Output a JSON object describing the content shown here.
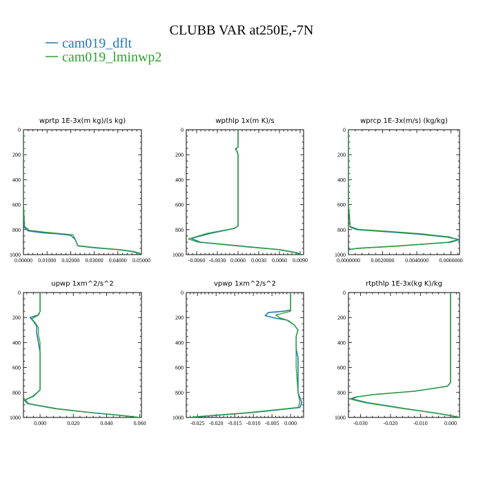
{
  "figure": {
    "title": "CLUBB VAR at250E,-7N",
    "legend": [
      {
        "name": "cam019_dflt",
        "color": "#1f77b4"
      },
      {
        "name": "cam019_lminwp2",
        "color": "#2ca02c"
      }
    ]
  },
  "chart_data": [
    {
      "type": "line",
      "title": "wprtp  1E-3x(m kg)/(s kg)",
      "xlim": [
        0,
        0.05
      ],
      "ylim": [
        1000,
        0
      ],
      "xticks": [
        "0.00000",
        "0.01000",
        "0.02000",
        "0.03000",
        "0.04000",
        "0.05000"
      ],
      "yticks": [
        "0",
        "200",
        "400",
        "600",
        "800",
        "1000"
      ],
      "series": [
        {
          "name": "cam019_dflt",
          "points": [
            [
              0,
              0
            ],
            [
              0,
              300
            ],
            [
              0,
              600
            ],
            [
              0.0003,
              780
            ],
            [
              0.002,
              810
            ],
            [
              0.008,
              825
            ],
            [
              0.015,
              835
            ],
            [
              0.02,
              845
            ],
            [
              0.022,
              880
            ],
            [
              0.023,
              930
            ],
            [
              0.03,
              945
            ],
            [
              0.04,
              960
            ],
            [
              0.046,
              975
            ],
            [
              0.049,
              990
            ],
            [
              0.05,
              1000
            ]
          ]
        },
        {
          "name": "cam019_lminwp2",
          "points": [
            [
              0,
              0
            ],
            [
              0,
              300
            ],
            [
              0,
              600
            ],
            [
              0.0005,
              775
            ],
            [
              0.0025,
              805
            ],
            [
              0.009,
              820
            ],
            [
              0.016,
              832
            ],
            [
              0.021,
              842
            ],
            [
              0.022,
              880
            ],
            [
              0.023,
              928
            ],
            [
              0.031,
              944
            ],
            [
              0.041,
              960
            ],
            [
              0.047,
              976
            ],
            [
              0.0495,
              990
            ],
            [
              0.05,
              1000
            ]
          ]
        }
      ]
    },
    {
      "type": "line",
      "title": "wpthlp  1x(m K)/s",
      "xlim": [
        -0.0075,
        0.0095
      ],
      "ylim": [
        1000,
        0
      ],
      "xticks": [
        "-0.0060",
        "-0.0030",
        "0.0000",
        "0.0030",
        "0.0060",
        "0.0090"
      ],
      "yticks": [
        "0",
        "200",
        "400",
        "600",
        "800",
        "1000"
      ],
      "series": [
        {
          "name": "cam019_dflt",
          "points": [
            [
              0,
              0
            ],
            [
              0,
              140
            ],
            [
              -0.0003,
              150
            ],
            [
              -0.0002,
              170
            ],
            [
              0,
              200
            ],
            [
              0,
              400
            ],
            [
              0,
              600
            ],
            [
              0,
              770
            ],
            [
              -0.0005,
              790
            ],
            [
              -0.004,
              830
            ],
            [
              -0.0068,
              870
            ],
            [
              -0.0055,
              900
            ],
            [
              0.002,
              940
            ],
            [
              0.006,
              960
            ],
            [
              0.0085,
              985
            ],
            [
              0.0092,
              1000
            ]
          ]
        },
        {
          "name": "cam019_lminwp2",
          "points": [
            [
              0,
              0
            ],
            [
              0,
              140
            ],
            [
              -0.0004,
              155
            ],
            [
              -0.0001,
              175
            ],
            [
              0,
              200
            ],
            [
              0,
              400
            ],
            [
              0,
              600
            ],
            [
              0,
              770
            ],
            [
              -0.0006,
              790
            ],
            [
              -0.0045,
              830
            ],
            [
              -0.0072,
              875
            ],
            [
              -0.0058,
              900
            ],
            [
              0.0015,
              940
            ],
            [
              0.0058,
              960
            ],
            [
              0.0083,
              985
            ],
            [
              0.0091,
              1000
            ]
          ]
        }
      ]
    },
    {
      "type": "line",
      "title": "wprcp  1E-3x(m/s) (kg/kg)",
      "xlim": [
        0,
        0.0065
      ],
      "ylim": [
        1000,
        0
      ],
      "xticks": [
        "0.0000000",
        "0.0020000",
        "0.0040000",
        "0.0060000"
      ],
      "yticks": [
        "0",
        "200",
        "400",
        "600",
        "800",
        "1000"
      ],
      "series": [
        {
          "name": "cam019_dflt",
          "points": [
            [
              0,
              0
            ],
            [
              0,
              400
            ],
            [
              0,
              600
            ],
            [
              0.0001,
              780
            ],
            [
              0.0005,
              800
            ],
            [
              0.002,
              815
            ],
            [
              0.004,
              835
            ],
            [
              0.0058,
              860
            ],
            [
              0.0065,
              880
            ],
            [
              0.006,
              900
            ],
            [
              0.003,
              930
            ],
            [
              0.0005,
              950
            ],
            [
              0,
              960
            ],
            [
              0,
              1000
            ]
          ]
        },
        {
          "name": "cam019_lminwp2",
          "points": [
            [
              0,
              0
            ],
            [
              0,
              400
            ],
            [
              0,
              600
            ],
            [
              0.0001,
              775
            ],
            [
              0.0006,
              798
            ],
            [
              0.0022,
              812
            ],
            [
              0.0042,
              832
            ],
            [
              0.0059,
              858
            ],
            [
              0.0064,
              880
            ],
            [
              0.0058,
              902
            ],
            [
              0.0028,
              932
            ],
            [
              0.0004,
              952
            ],
            [
              0,
              962
            ],
            [
              0,
              1000
            ]
          ]
        }
      ]
    },
    {
      "type": "line",
      "title": "upwp  1xm^2/s^2",
      "xlim": [
        -0.01,
        0.061
      ],
      "ylim": [
        1000,
        0
      ],
      "xticks": [
        "0.000",
        "0.020",
        "0.040",
        "0.060"
      ],
      "yticks": [
        "0",
        "200",
        "400",
        "600",
        "800",
        "1000"
      ],
      "series": [
        {
          "name": "cam019_dflt",
          "points": [
            [
              0,
              0
            ],
            [
              0,
              150
            ],
            [
              -0.001,
              180
            ],
            [
              -0.006,
              200
            ],
            [
              -0.004,
              230
            ],
            [
              -0.002,
              270
            ],
            [
              -0.002,
              330
            ],
            [
              -0.001,
              400
            ],
            [
              0,
              480
            ],
            [
              0,
              600
            ],
            [
              0,
              780
            ],
            [
              -0.004,
              830
            ],
            [
              -0.009,
              860
            ],
            [
              -0.007,
              890
            ],
            [
              0.01,
              930
            ],
            [
              0.03,
              960
            ],
            [
              0.05,
              985
            ],
            [
              0.06,
              1000
            ]
          ]
        },
        {
          "name": "cam019_lminwp2",
          "points": [
            [
              0,
              0
            ],
            [
              0,
              150
            ],
            [
              -0.0015,
              185
            ],
            [
              -0.005,
              210
            ],
            [
              -0.003,
              240
            ],
            [
              -0.001,
              280
            ],
            [
              -0.001,
              340
            ],
            [
              0,
              400
            ],
            [
              0,
              480
            ],
            [
              0,
              600
            ],
            [
              0,
              780
            ],
            [
              -0.0045,
              830
            ],
            [
              -0.0095,
              862
            ],
            [
              -0.0075,
              890
            ],
            [
              0.009,
              930
            ],
            [
              0.029,
              960
            ],
            [
              0.049,
              985
            ],
            [
              0.06,
              1000
            ]
          ]
        }
      ]
    },
    {
      "type": "line",
      "title": "vpwp  1xm^2/s^2",
      "xlim": [
        -0.028,
        0.0035
      ],
      "ylim": [
        1000,
        0
      ],
      "xticks": [
        "-0.025",
        "-0.020",
        "-0.015",
        "-0.010",
        "-0.005",
        "0.000"
      ],
      "yticks": [
        "0",
        "200",
        "400",
        "600",
        "800",
        "1000"
      ],
      "series": [
        {
          "name": "cam019_dflt",
          "points": [
            [
              0,
              0
            ],
            [
              0,
              140
            ],
            [
              -0.002,
              150
            ],
            [
              -0.006,
              160
            ],
            [
              -0.0068,
              185
            ],
            [
              -0.004,
              205
            ],
            [
              -0.001,
              220
            ],
            [
              0.001,
              260
            ],
            [
              0.002,
              300
            ],
            [
              0.0015,
              350
            ],
            [
              0.0015,
              450
            ],
            [
              0.002,
              520
            ],
            [
              0.002,
              600
            ],
            [
              0.002,
              800
            ],
            [
              0.003,
              880
            ],
            [
              0.0025,
              920
            ],
            [
              -0.01,
              960
            ],
            [
              -0.025,
              995
            ],
            [
              -0.027,
              1000
            ]
          ]
        },
        {
          "name": "cam019_lminwp2",
          "points": [
            [
              0,
              0
            ],
            [
              0,
              150
            ],
            [
              -0.002,
              165
            ],
            [
              -0.004,
              180
            ],
            [
              -0.003,
              200
            ],
            [
              -0.0005,
              225
            ],
            [
              0.001,
              260
            ],
            [
              0.002,
              300
            ],
            [
              0.0015,
              350
            ],
            [
              0.0015,
              450
            ],
            [
              0.0015,
              520
            ],
            [
              0.0015,
              600
            ],
            [
              0.002,
              800
            ],
            [
              0.0025,
              880
            ],
            [
              0.002,
              920
            ],
            [
              -0.011,
              960
            ],
            [
              -0.026,
              995
            ],
            [
              -0.027,
              1000
            ]
          ]
        }
      ]
    },
    {
      "type": "line",
      "title": "rtpthlp  1E-3x(kg K)/kg",
      "xlim": [
        -0.034,
        0.003
      ],
      "ylim": [
        1000,
        0
      ],
      "xticks": [
        "-0.030",
        "-0.020",
        "-0.010",
        "0.000"
      ],
      "yticks": [
        "0",
        "200",
        "400",
        "600",
        "800",
        "1000"
      ],
      "series": [
        {
          "name": "cam019_dflt",
          "points": [
            [
              0,
              0
            ],
            [
              0,
              400
            ],
            [
              0,
              600
            ],
            [
              0,
              720
            ],
            [
              -0.001,
              750
            ],
            [
              -0.012,
              790
            ],
            [
              -0.025,
              815
            ],
            [
              -0.031,
              835
            ],
            [
              -0.033,
              850
            ],
            [
              -0.028,
              880
            ],
            [
              -0.015,
              930
            ],
            [
              -0.005,
              965
            ],
            [
              0.001,
              990
            ],
            [
              0.003,
              1000
            ]
          ]
        },
        {
          "name": "cam019_lminwp2",
          "points": [
            [
              0,
              0
            ],
            [
              0,
              400
            ],
            [
              0,
              600
            ],
            [
              0,
              720
            ],
            [
              -0.0012,
              752
            ],
            [
              -0.013,
              792
            ],
            [
              -0.026,
              818
            ],
            [
              -0.032,
              838
            ],
            [
              -0.0335,
              852
            ],
            [
              -0.0285,
              882
            ],
            [
              -0.015,
              932
            ],
            [
              -0.0045,
              966
            ],
            [
              0.001,
              990
            ],
            [
              0.003,
              1000
            ]
          ]
        }
      ]
    }
  ]
}
